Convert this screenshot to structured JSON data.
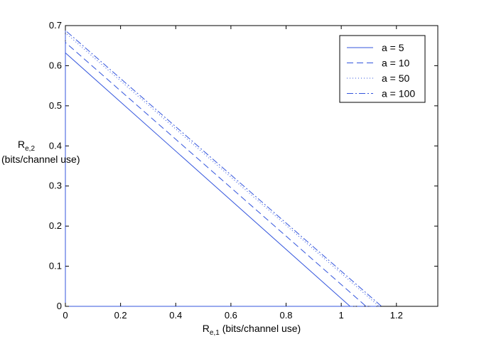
{
  "chart_data": {
    "type": "line",
    "title": "",
    "xlabel": {
      "main": "R",
      "sub": "e,1",
      "rest": " (bits/channel use)"
    },
    "ylabel": {
      "main": "R",
      "sub": "e,2",
      "line2": "(bits/channel use)"
    },
    "xlim": [
      0,
      1.35
    ],
    "ylim": [
      0,
      0.7
    ],
    "xticks": [
      0,
      0.2,
      0.4,
      0.6,
      0.8,
      1,
      1.2
    ],
    "xtick_labels": [
      "0",
      "0.2",
      "0.4",
      "0.6",
      "0.8",
      "1",
      "1.2"
    ],
    "yticks": [
      0,
      0.1,
      0.2,
      0.3,
      0.4,
      0.5,
      0.6,
      0.7
    ],
    "ytick_labels": [
      "0",
      "0.1",
      "0.2",
      "0.3",
      "0.4",
      "0.5",
      "0.6",
      "0.7"
    ],
    "grid": false,
    "legend_position": "top-right",
    "color": "#3355dd",
    "series": [
      {
        "name": "a = 5",
        "style": "solid",
        "x": [
          0,
          0,
          1.032,
          0,
          0
        ],
        "y": [
          0,
          0.632,
          0,
          0,
          0
        ]
      },
      {
        "name": "a = 10",
        "style": "dashed",
        "x": [
          0,
          0,
          1.09,
          0
        ],
        "y": [
          0,
          0.658,
          0,
          0
        ]
      },
      {
        "name": "a = 50",
        "style": "dotted",
        "x": [
          0,
          0,
          1.137,
          0
        ],
        "y": [
          0,
          0.682,
          0,
          0
        ]
      },
      {
        "name": "a = 100",
        "style": "dashdot",
        "x": [
          0,
          0,
          1.146,
          0
        ],
        "y": [
          0,
          0.688,
          0,
          0
        ]
      }
    ]
  }
}
